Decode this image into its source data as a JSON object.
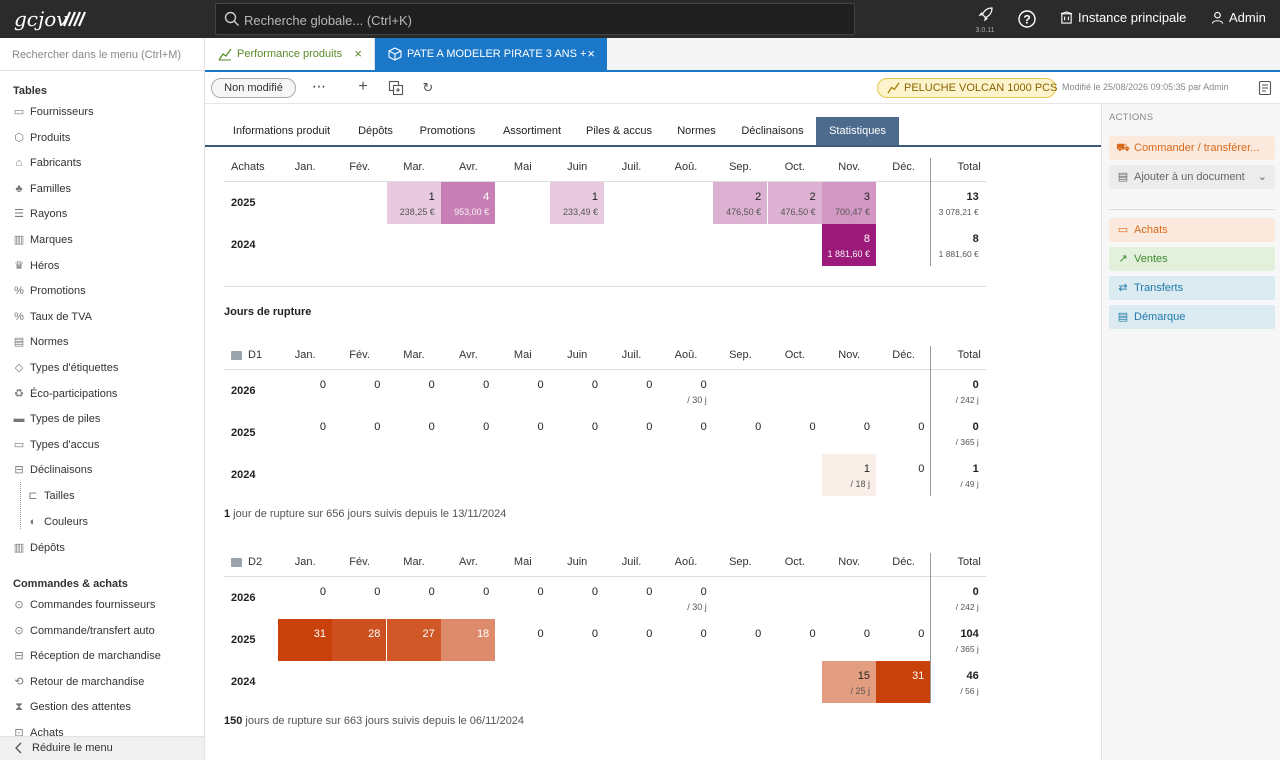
{
  "topbar": {
    "search_placeholder": "Recherche globale... (Ctrl+K)",
    "version": "3.0.11",
    "instance": "Instance principale",
    "user": "Admin"
  },
  "sidebar": {
    "search_placeholder": "Rechercher dans le menu (Ctrl+M)",
    "section_tables": "Tables",
    "tables": [
      "Fournisseurs",
      "Produits",
      "Fabricants",
      "Familles",
      "Rayons",
      "Marques",
      "Héros",
      "Promotions",
      "Taux de TVA",
      "Normes",
      "Types d'étiquettes",
      "Éco-participations",
      "Types de piles",
      "Types d'accus",
      "Déclinaisons"
    ],
    "declinaisons_children": [
      "Tailles",
      "Couleurs"
    ],
    "depots": "Dépôts",
    "section_orders": "Commandes & achats",
    "orders": [
      "Commandes fournisseurs",
      "Commande/transfert auto",
      "Réception de marchandise",
      "Retour de marchandise",
      "Gestion des attentes",
      "Achats"
    ],
    "reduce": "Réduire le menu"
  },
  "tabs": [
    {
      "label": "Performance produits"
    },
    {
      "label": "PATE A MODELER PIRATE 3 ANS +"
    }
  ],
  "toolbar": {
    "status": "Non modifié",
    "related_product": "PELUCHE VOLCAN 1000 PCS",
    "modified": "Modifié le 25/08/2026 09:05:35 par Admin"
  },
  "subtabs": [
    "Informations produit",
    "Dépôts",
    "Promotions",
    "Assortiment",
    "Piles & accus",
    "Normes",
    "Déclinaisons",
    "Statistiques"
  ],
  "active_subtab": "Statistiques",
  "months": [
    "Jan.",
    "Fév.",
    "Mar.",
    "Avr.",
    "Mai",
    "Juin",
    "Juil.",
    "Aoû.",
    "Sep.",
    "Oct.",
    "Nov.",
    "Déc."
  ],
  "total_label": "Total",
  "purchases": {
    "title": "Achats",
    "rows": [
      {
        "year": "2025",
        "cells": [
          null,
          null,
          {
            "v": "1",
            "s": "238,25 €"
          },
          {
            "v": "4",
            "s": "953,00 €"
          },
          null,
          {
            "v": "1",
            "s": "233,49 €"
          },
          null,
          null,
          {
            "v": "2",
            "s": "476,50 €"
          },
          {
            "v": "2",
            "s": "476,50 €"
          },
          {
            "v": "3",
            "s": "700,47 €"
          },
          null
        ],
        "total": {
          "v": "13",
          "s": "3 078,21 €"
        }
      },
      {
        "year": "2024",
        "cells": [
          null,
          null,
          null,
          null,
          null,
          null,
          null,
          null,
          null,
          null,
          {
            "v": "8",
            "s": "1 881,60 €"
          },
          null
        ],
        "total": {
          "v": "8",
          "s": "1 881,60 €"
        }
      }
    ]
  },
  "stockout_title": "Jours de rupture",
  "stores": [
    {
      "name": "D1",
      "rows": [
        {
          "year": "2026",
          "cells": [
            {
              "v": "0"
            },
            {
              "v": "0"
            },
            {
              "v": "0"
            },
            {
              "v": "0"
            },
            {
              "v": "0"
            },
            {
              "v": "0"
            },
            {
              "v": "0"
            },
            {
              "v": "0",
              "s": "/ 30 j"
            },
            null,
            null,
            null,
            null
          ],
          "total": {
            "v": "0",
            "s": "/ 242 j"
          }
        },
        {
          "year": "2025",
          "cells": [
            {
              "v": "0"
            },
            {
              "v": "0"
            },
            {
              "v": "0"
            },
            {
              "v": "0"
            },
            {
              "v": "0"
            },
            {
              "v": "0"
            },
            {
              "v": "0"
            },
            {
              "v": "0"
            },
            {
              "v": "0"
            },
            {
              "v": "0"
            },
            {
              "v": "0"
            },
            {
              "v": "0"
            }
          ],
          "total": {
            "v": "0",
            "s": "/ 365 j"
          }
        },
        {
          "year": "2024",
          "cells": [
            null,
            null,
            null,
            null,
            null,
            null,
            null,
            null,
            null,
            null,
            {
              "v": "1",
              "s": "/ 18 j"
            },
            {
              "v": "0"
            }
          ],
          "total": {
            "v": "1",
            "s": "/ 49 j"
          }
        }
      ],
      "summary_bold": "1",
      "summary": " jour de rupture sur 656 jours suivis depuis le 13/11/2024"
    },
    {
      "name": "D2",
      "rows": [
        {
          "year": "2026",
          "cells": [
            {
              "v": "0"
            },
            {
              "v": "0"
            },
            {
              "v": "0"
            },
            {
              "v": "0"
            },
            {
              "v": "0"
            },
            {
              "v": "0"
            },
            {
              "v": "0"
            },
            {
              "v": "0",
              "s": "/ 30 j"
            },
            null,
            null,
            null,
            null
          ],
          "total": {
            "v": "0",
            "s": "/ 242 j"
          }
        },
        {
          "year": "2025",
          "cells": [
            {
              "v": "31"
            },
            {
              "v": "28"
            },
            {
              "v": "27"
            },
            {
              "v": "18"
            },
            {
              "v": "0"
            },
            {
              "v": "0"
            },
            {
              "v": "0"
            },
            {
              "v": "0"
            },
            {
              "v": "0"
            },
            {
              "v": "0"
            },
            {
              "v": "0"
            },
            {
              "v": "0"
            }
          ],
          "total": {
            "v": "104",
            "s": "/ 365 j"
          }
        },
        {
          "year": "2024",
          "cells": [
            null,
            null,
            null,
            null,
            null,
            null,
            null,
            null,
            null,
            null,
            {
              "v": "15",
              "s": "/ 25 j"
            },
            {
              "v": "31"
            }
          ],
          "total": {
            "v": "46",
            "s": "/ 56 j"
          }
        }
      ],
      "summary_bold": "150",
      "summary": " jours de rupture sur 663 jours suivis depuis le 06/11/2024"
    }
  ],
  "actions": {
    "title": "ACTIONS",
    "primary": [
      {
        "label": "Commander / transférer...",
        "icon": "truck-icon",
        "color": "#d86a1a",
        "bg": "#fce9dd"
      },
      {
        "label": "Ajouter à un document",
        "icon": "document-icon",
        "color": "#666666",
        "bg": "#ececec"
      }
    ],
    "links": [
      {
        "label": "Achats",
        "icon": "cart-icon",
        "color": "#d86a1a",
        "bg": "#fce9dd"
      },
      {
        "label": "Ventes",
        "icon": "trend-icon",
        "color": "#3c8a2e",
        "bg": "#e3f1dc"
      },
      {
        "label": "Transferts",
        "icon": "transfer-icon",
        "color": "#1d7aa8",
        "bg": "#dcebf1"
      },
      {
        "label": "Démarque",
        "icon": "clipboard-icon",
        "color": "#1d7aa8",
        "bg": "#dcebf1"
      }
    ]
  },
  "colors": {
    "accent": "#1b77c8",
    "subtab_active": "#4d6b8c",
    "purchase_heat": "#9c1a7a",
    "stockout_heat": "#c8400a"
  }
}
